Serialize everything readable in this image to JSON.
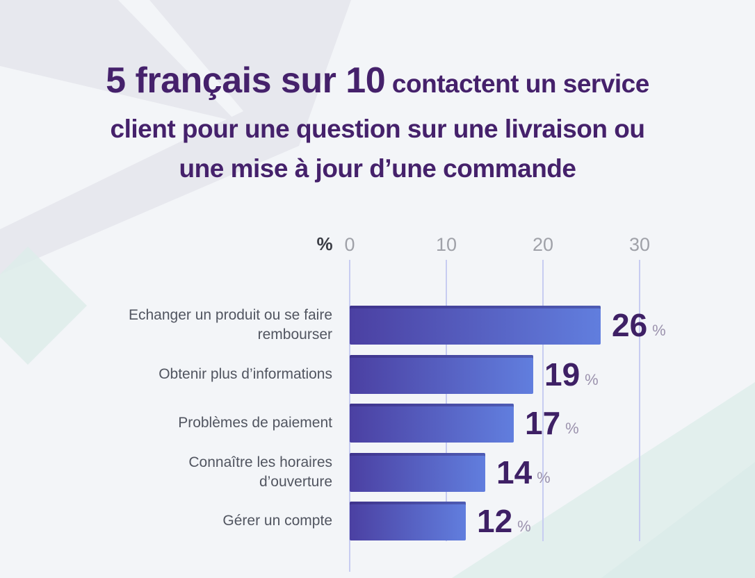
{
  "page": {
    "background": "#f3f5f8"
  },
  "title": {
    "emphasis": "5 français sur 10",
    "rest_line1": " contactent un service",
    "line2": "client pour une question sur une livraison ou",
    "line3": "une mise à jour d’une commande",
    "color": "#45216b"
  },
  "chart_data": {
    "type": "bar",
    "orientation": "horizontal",
    "title": "5 français sur 10 contactent un service client pour une question sur une livraison ou une mise à jour d’une commande",
    "unit": "%",
    "categories": [
      "Echanger un produit ou se faire rembourser",
      "Obtenir plus d’informations",
      "Problèmes de paiement",
      "Connaître les horaires d’ouverture",
      "Gérer un compte"
    ],
    "category_lines": [
      [
        "Echanger un produit ou se faire",
        "rembourser"
      ],
      [
        "Obtenir plus d’informations"
      ],
      [
        "Problèmes de paiement"
      ],
      [
        "Connaître les horaires",
        "d’ouverture"
      ],
      [
        "Gérer un compte"
      ]
    ],
    "values": [
      26,
      19,
      17,
      14,
      12
    ],
    "value_suffix": "%",
    "axis": {
      "label": "%",
      "position": "top",
      "ticks": [
        0,
        10,
        20,
        30
      ],
      "range": [
        0,
        30
      ],
      "gridlines": true
    },
    "legend": null,
    "colors": {
      "bar_gradient_start": "#4b40a2",
      "bar_gradient_end": "#617ede",
      "bar_top_edge": "rgba(42,28,99,0.35)",
      "gridline": "#c7ccf1",
      "tick_label": "#9fa1a8",
      "axis_unit_label": "#3b3d45",
      "category_label": "#515560",
      "value_number": "#3e2065",
      "value_percent": "#9b92ad",
      "title": "#45216b"
    }
  },
  "decor": {
    "chevron_color": "#e7e8ee",
    "teal_diamond_color": "#ddecea",
    "teal_corner_color": "#e2efed",
    "teal_corner_inner_color": "#d8e9e7"
  }
}
